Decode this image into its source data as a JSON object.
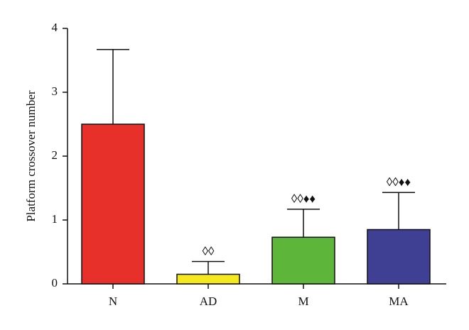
{
  "chart_data": {
    "type": "bar",
    "y_label": "Platform crossover number",
    "categories": [
      "N",
      "AD",
      "M",
      "MA"
    ],
    "values": [
      2.5,
      0.15,
      0.73,
      0.85
    ],
    "errors": [
      1.17,
      0.2,
      0.44,
      0.58
    ],
    "colors": [
      "#e8302a",
      "#f5e81c",
      "#5db53a",
      "#3f3f93"
    ],
    "annotations": [
      null,
      "◊◊",
      "◊◊♦♦",
      "◊◊♦♦"
    ],
    "ylim": [
      0,
      4
    ],
    "yticks": [
      0,
      1,
      2,
      3,
      4
    ],
    "grid": false
  }
}
